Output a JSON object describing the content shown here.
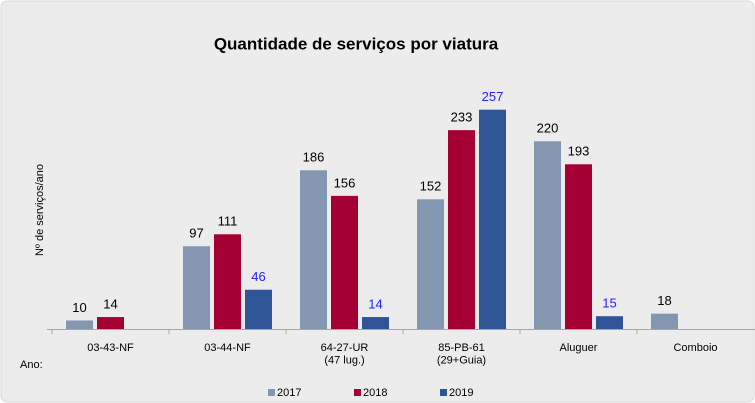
{
  "chart_data": {
    "type": "bar",
    "title": "Quantidade de serviços por viatura",
    "y_label": "Nº de serviços/ano",
    "x_label": "Ano:",
    "categories": [
      "03-43-NF",
      "03-44-NF",
      "64-27-UR\n(47 lug.)",
      "85-PB-61\n(29+Guia)",
      "Aluguer",
      "Comboio"
    ],
    "series": [
      {
        "name": "2017",
        "color": "#8497b0",
        "label_color": "#000000",
        "values": [
          10,
          97,
          186,
          152,
          220,
          18
        ]
      },
      {
        "name": "2018",
        "color": "#a50034",
        "label_color": "#000000",
        "values": [
          14,
          111,
          156,
          233,
          193,
          null
        ]
      },
      {
        "name": "2019",
        "color": "#2f5597",
        "label_color": "#2323ff",
        "values": [
          null,
          46,
          14,
          257,
          15,
          null
        ]
      }
    ],
    "ylim": [
      0,
      300
    ],
    "legend": "bottom"
  }
}
